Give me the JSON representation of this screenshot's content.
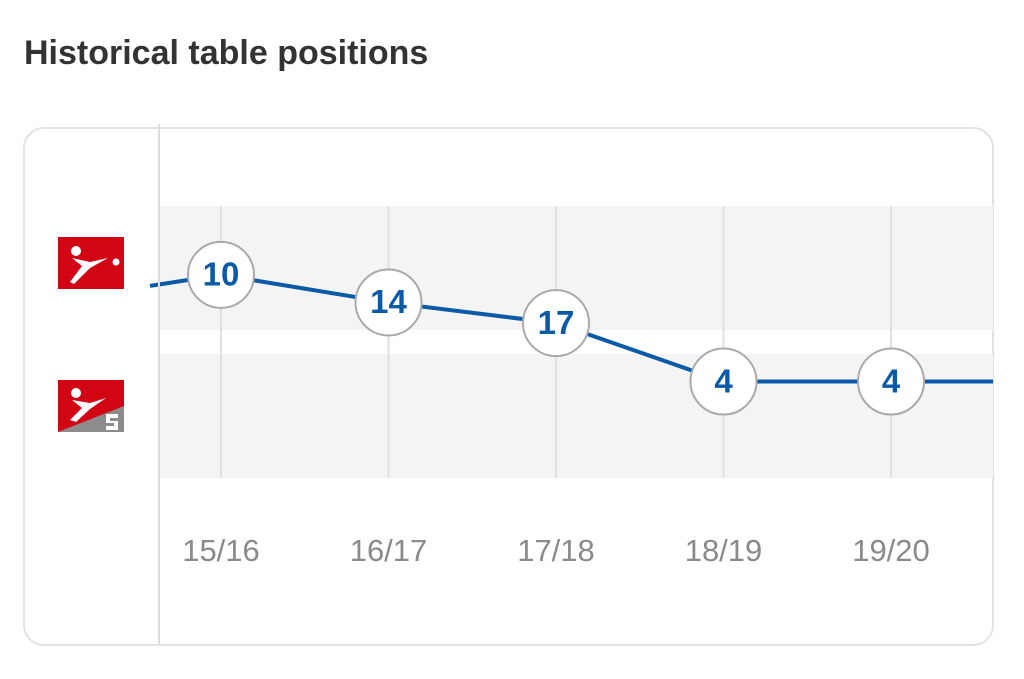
{
  "chart_data": {
    "type": "line",
    "title": "Historical table positions",
    "categories": [
      "15/16",
      "16/17",
      "17/18",
      "18/19",
      "19/20"
    ],
    "series": [
      {
        "color": "#0b5aa8",
        "values": [
          10,
          14,
          17,
          null,
          null
        ]
      },
      {
        "color": "#0b5aa8",
        "values": [
          null,
          null,
          null,
          4,
          4
        ]
      }
    ],
    "ylim": [
      0,
      18
    ]
  }
}
